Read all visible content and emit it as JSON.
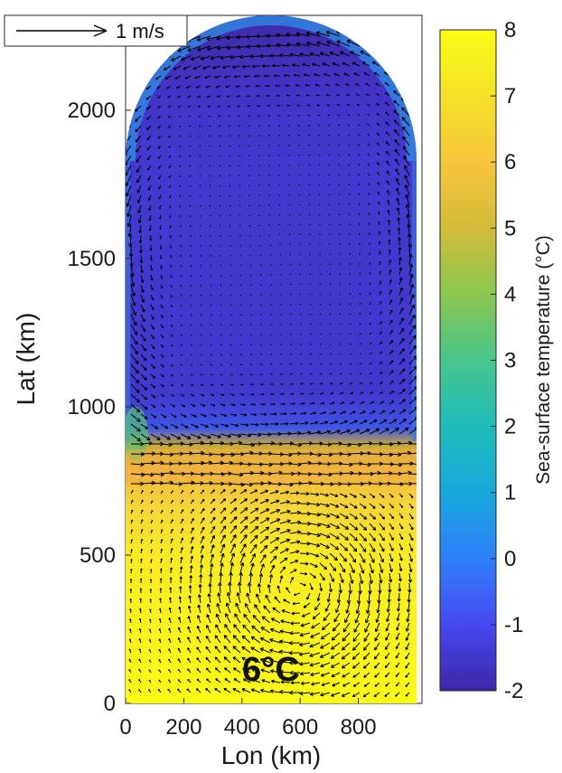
{
  "chart_data": {
    "type": "heatmap",
    "overlay": "quiver (velocity vectors)",
    "xlabel": "Lon (km)",
    "ylabel": "Lat (km)",
    "xlim": [
      0,
      1000
    ],
    "ylim": [
      0,
      2270
    ],
    "x_ticks": [
      0,
      200,
      400,
      600,
      800
    ],
    "y_ticks": [
      0,
      500,
      1000,
      1500,
      2000
    ],
    "colorbar": {
      "label": "Sea-surface temperature (°C)",
      "min": -2,
      "max": 8,
      "ticks": [
        -2,
        -1,
        0,
        1,
        2,
        3,
        4,
        5,
        6,
        7,
        8
      ],
      "colormap": [
        "#3e26a8",
        "#4748f0",
        "#2f80fa",
        "#18a9db",
        "#28bcab",
        "#5ec962",
        "#b5c932",
        "#f5b838",
        "#f9d82a",
        "#f9fb15"
      ]
    },
    "domain": {
      "shape": "rectangle with semicircular northern cap",
      "x_range": [
        0,
        1000
      ],
      "rect_top_lat": 1850,
      "cap_radius": 500
    },
    "sst_field": [
      {
        "region": "northern basin interior (lat > 850 km)",
        "sst": -1.5
      },
      {
        "region": "northern basin near boundary",
        "sst": 0.5
      },
      {
        "region": "front near lat 700-850 km",
        "sst": 5.5
      },
      {
        "region": "southern basin interior (lat < 650 km)",
        "sst": 7.8
      }
    ],
    "quiver_key": {
      "label": "1 m/s",
      "value": 1
    },
    "annotations": [
      {
        "text": "6°C",
        "x": 490,
        "y": 80
      }
    ],
    "grid": false
  },
  "colors": {
    "axis": "#262626",
    "vector": "#000000",
    "mask": "#ffffff"
  }
}
